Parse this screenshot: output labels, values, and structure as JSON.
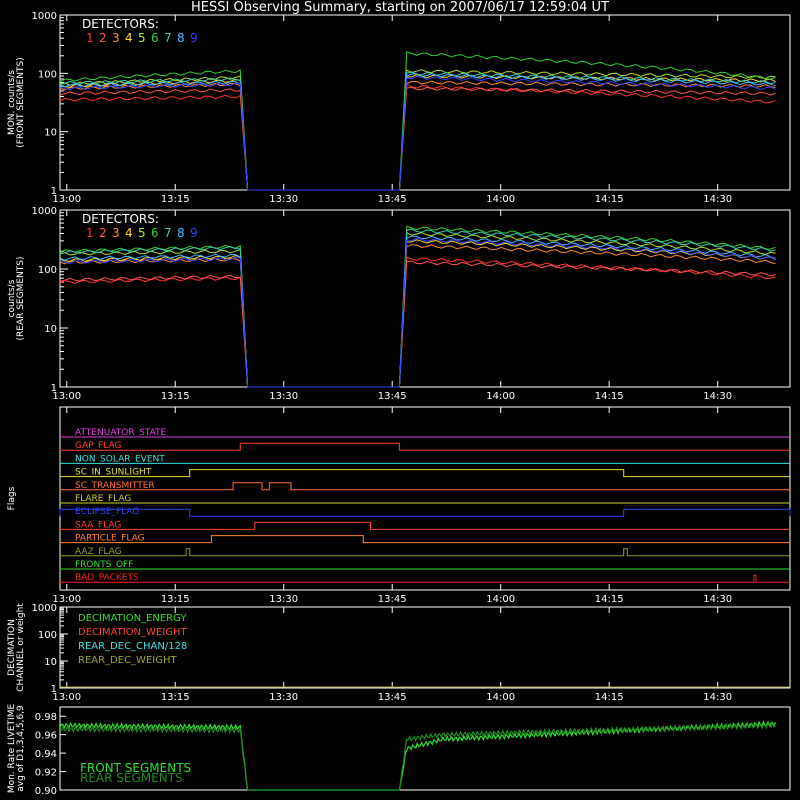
{
  "title": "HESSI Observing Summary, starting on 2007/06/17 12:59:04 UT",
  "x_ticks": [
    "13:00",
    "13:15",
    "13:30",
    "13:45",
    "14:00",
    "14:15",
    "14:30"
  ],
  "detector_colors": [
    "#ff3030",
    "#ff5050",
    "#ff8a30",
    "#ffd830",
    "#b0e030",
    "#30d030",
    "#30d0b0",
    "#40b8ff",
    "#3040ff"
  ],
  "chart_data": [
    {
      "type": "line",
      "ylabel": [
        "MON. counts/s",
        "(FRONT SEGMENTS)"
      ],
      "yscale": "log",
      "ylim": [
        1,
        1000
      ],
      "y_ticks": [
        "1",
        "10",
        "100",
        "1000"
      ],
      "legend_title": "DETECTORS:",
      "legend_items": [
        "1",
        "2",
        "3",
        "4",
        "5",
        "6",
        "7",
        "8",
        "9"
      ],
      "x": [
        "12:59:04",
        "13:24",
        "13:25",
        "13:46",
        "13:47",
        "14:38"
      ],
      "series": [
        {
          "name": "1",
          "values": [
            35,
            40,
            1,
            1,
            60,
            32
          ]
        },
        {
          "name": "2",
          "values": [
            45,
            52,
            1,
            1,
            55,
            45
          ]
        },
        {
          "name": "3",
          "values": [
            55,
            65,
            1,
            1,
            70,
            60
          ]
        },
        {
          "name": "4",
          "values": [
            60,
            75,
            1,
            1,
            90,
            75
          ]
        },
        {
          "name": "5",
          "values": [
            65,
            85,
            1,
            1,
            110,
            85
          ]
        },
        {
          "name": "6",
          "values": [
            75,
            110,
            1,
            1,
            220,
            80
          ]
        },
        {
          "name": "7",
          "values": [
            68,
            80,
            1,
            1,
            100,
            70
          ]
        },
        {
          "name": "8",
          "values": [
            62,
            70,
            1,
            1,
            95,
            65
          ]
        },
        {
          "name": "9",
          "values": [
            55,
            65,
            1,
            1,
            85,
            55
          ]
        }
      ]
    },
    {
      "type": "line",
      "ylabel": [
        "counts/s",
        "(REAR SEGMENTS)"
      ],
      "yscale": "log",
      "ylim": [
        1,
        1000
      ],
      "y_ticks": [
        "1",
        "10",
        "100",
        "1000"
      ],
      "legend_title": "DETECTORS:",
      "legend_items": [
        "1",
        "2",
        "3",
        "4",
        "5",
        "6",
        "7",
        "8",
        "9"
      ],
      "x": [
        "12:59:04",
        "13:24",
        "13:25",
        "13:46",
        "13:47",
        "14:38"
      ],
      "series": [
        {
          "name": "1",
          "values": [
            60,
            70,
            1,
            1,
            150,
            70
          ]
        },
        {
          "name": "2",
          "values": [
            65,
            75,
            1,
            1,
            130,
            80
          ]
        },
        {
          "name": "3",
          "values": [
            130,
            145,
            1,
            1,
            250,
            130
          ]
        },
        {
          "name": "4",
          "values": [
            140,
            160,
            1,
            1,
            300,
            150
          ]
        },
        {
          "name": "5",
          "values": [
            180,
            200,
            1,
            1,
            400,
            180
          ]
        },
        {
          "name": "6",
          "values": [
            200,
            240,
            1,
            1,
            500,
            220
          ]
        },
        {
          "name": "7",
          "values": [
            190,
            230,
            1,
            1,
            450,
            210
          ]
        },
        {
          "name": "8",
          "values": [
            150,
            170,
            1,
            1,
            350,
            160
          ]
        },
        {
          "name": "9",
          "values": [
            130,
            150,
            1,
            1,
            320,
            150
          ]
        }
      ]
    },
    {
      "type": "line",
      "ylabel": [
        "Flags"
      ],
      "flags": [
        {
          "name": "ATTENUATOR_STATE",
          "color": "#e040e0",
          "on": []
        },
        {
          "name": "GAP_FLAG",
          "color": "#ff4030",
          "on": [
            [
              "13:24",
              "13:46"
            ]
          ]
        },
        {
          "name": "NON_SOLAR_EVENT",
          "color": "#40e0e0",
          "on": []
        },
        {
          "name": "SC_IN_SUNLIGHT",
          "color": "#e0e030",
          "on": [
            [
              "13:17",
              "14:17"
            ]
          ]
        },
        {
          "name": "SC_TRANSMITTER",
          "color": "#ff7030",
          "on": [
            [
              "13:23",
              "13:27"
            ],
            [
              "13:28",
              "13:31"
            ]
          ]
        },
        {
          "name": "FLARE_FLAG",
          "color": "#d0d020",
          "on": []
        },
        {
          "name": "ECLIPSE_FLAG",
          "color": "#3040ff",
          "on": [
            [
              "12:59:04",
              "13:17"
            ],
            [
              "14:17",
              "14:40"
            ]
          ]
        },
        {
          "name": "SAA_FLAG",
          "color": "#ff4030",
          "on": [
            [
              "13:26",
              "13:42"
            ]
          ]
        },
        {
          "name": "PARTICLE_FLAG",
          "color": "#ff8030",
          "on": [
            [
              "13:20",
              "13:41"
            ]
          ]
        },
        {
          "name": "AAZ_FLAG",
          "color": "#90a020",
          "on": [
            [
              "13:16.5",
              "13:17"
            ],
            [
              "14:17",
              "14:17.5"
            ]
          ]
        },
        {
          "name": "FRONTS_OFF",
          "color": "#30e030",
          "on": []
        },
        {
          "name": "BAD_PACKETS",
          "color": "#ff2020",
          "on": [
            [
              "14:35",
              "14:35.3"
            ]
          ]
        }
      ]
    },
    {
      "type": "line",
      "ylabel": [
        "DECIMATION",
        "CHANNEL or weight"
      ],
      "yscale": "log",
      "ylim": [
        1,
        1000
      ],
      "y_ticks": [
        "1",
        "10",
        "100",
        "1000"
      ],
      "series": [
        {
          "name": "DECIMATION_ENERGY",
          "color": "#30e030",
          "values": [
            1,
            1
          ]
        },
        {
          "name": "DECIMATION_WEIGHT",
          "color": "#ff4030",
          "values": [
            1,
            1
          ]
        },
        {
          "name": "REAR_DEC_CHAN/128",
          "color": "#40e0e0",
          "values": [
            1,
            1
          ]
        },
        {
          "name": "REAR_DEC_WEIGHT",
          "color": "#a0a030",
          "values": [
            1,
            1
          ]
        }
      ]
    },
    {
      "type": "line",
      "ylabel": [
        "Mon. Rate LIVETIME",
        "avg of D1,3,4,5,6,9"
      ],
      "ylim": [
        0.9,
        0.99
      ],
      "y_ticks": [
        "0.90",
        "0.92",
        "0.94",
        "0.96",
        "0.98"
      ],
      "x": [
        "12:59:04",
        "13:24",
        "13:25",
        "13:46",
        "13:47",
        "13:52",
        "14:38"
      ],
      "series": [
        {
          "name": "FRONT SEGMENTS",
          "color": "#30e030",
          "values": [
            0.97,
            0.968,
            0.9,
            0.9,
            0.945,
            0.955,
            0.972
          ]
        },
        {
          "name": "REAR SEGMENTS",
          "color": "#228b22",
          "values": [
            0.966,
            0.965,
            0.9,
            0.9,
            0.955,
            0.96,
            0.97
          ]
        }
      ]
    }
  ]
}
